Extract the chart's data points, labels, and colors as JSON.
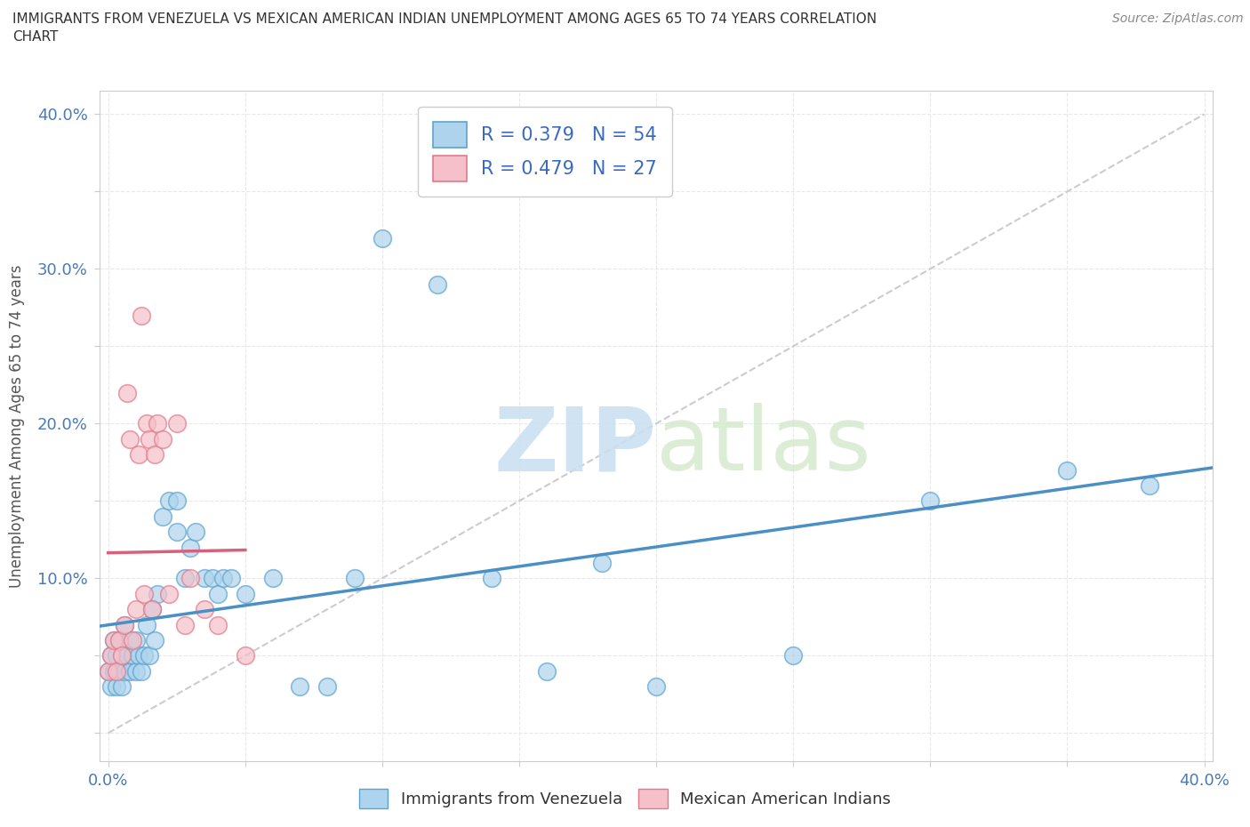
{
  "title_line1": "IMMIGRANTS FROM VENEZUELA VS MEXICAN AMERICAN INDIAN UNEMPLOYMENT AMONG AGES 65 TO 74 YEARS CORRELATION",
  "title_line2": "CHART",
  "source": "Source: ZipAtlas.com",
  "ylabel": "Unemployment Among Ages 65 to 74 years",
  "xlim": [
    -0.003,
    0.403
  ],
  "ylim": [
    -0.018,
    0.415
  ],
  "xticks": [
    0.0,
    0.05,
    0.1,
    0.15,
    0.2,
    0.25,
    0.3,
    0.35,
    0.4
  ],
  "yticks": [
    0.0,
    0.05,
    0.1,
    0.15,
    0.2,
    0.25,
    0.3,
    0.35,
    0.4
  ],
  "venezuela_color": "#aed4ed",
  "venezuela_edge": "#5ba3d0",
  "mexico_color": "#f5c0ca",
  "mexico_edge": "#e07a8a",
  "trend_venezuela_color": "#4a90c4",
  "trend_mexico_color": "#d9607a",
  "diagonal_color": "#cccccc",
  "R_venezuela": 0.379,
  "N_venezuela": 54,
  "R_mexico": 0.479,
  "N_mexico": 27,
  "legend_label_venezuela": "Immigrants from Venezuela",
  "legend_label_mexico": "Mexican American Indians",
  "venezuela_x": [
    0.0,
    0.001,
    0.001,
    0.002,
    0.002,
    0.003,
    0.003,
    0.004,
    0.004,
    0.005,
    0.005,
    0.006,
    0.006,
    0.007,
    0.008,
    0.008,
    0.009,
    0.01,
    0.01,
    0.011,
    0.012,
    0.013,
    0.014,
    0.015,
    0.016,
    0.017,
    0.018,
    0.02,
    0.022,
    0.025,
    0.025,
    0.028,
    0.03,
    0.032,
    0.035,
    0.038,
    0.04,
    0.042,
    0.045,
    0.05,
    0.06,
    0.07,
    0.08,
    0.09,
    0.1,
    0.12,
    0.14,
    0.16,
    0.18,
    0.2,
    0.25,
    0.3,
    0.35,
    0.38
  ],
  "venezuela_y": [
    0.04,
    0.03,
    0.05,
    0.04,
    0.06,
    0.03,
    0.05,
    0.04,
    0.06,
    0.03,
    0.05,
    0.04,
    0.07,
    0.05,
    0.04,
    0.06,
    0.05,
    0.04,
    0.06,
    0.05,
    0.04,
    0.05,
    0.07,
    0.05,
    0.08,
    0.06,
    0.09,
    0.14,
    0.15,
    0.13,
    0.15,
    0.1,
    0.12,
    0.13,
    0.1,
    0.1,
    0.09,
    0.1,
    0.1,
    0.09,
    0.1,
    0.03,
    0.03,
    0.1,
    0.32,
    0.29,
    0.1,
    0.04,
    0.11,
    0.03,
    0.05,
    0.15,
    0.17,
    0.16
  ],
  "mexico_x": [
    0.0,
    0.001,
    0.002,
    0.003,
    0.004,
    0.005,
    0.006,
    0.007,
    0.008,
    0.009,
    0.01,
    0.011,
    0.012,
    0.013,
    0.014,
    0.015,
    0.016,
    0.017,
    0.018,
    0.02,
    0.022,
    0.025,
    0.028,
    0.03,
    0.035,
    0.04,
    0.05
  ],
  "mexico_y": [
    0.04,
    0.05,
    0.06,
    0.04,
    0.06,
    0.05,
    0.07,
    0.22,
    0.19,
    0.06,
    0.08,
    0.18,
    0.27,
    0.09,
    0.2,
    0.19,
    0.08,
    0.18,
    0.2,
    0.19,
    0.09,
    0.2,
    0.07,
    0.1,
    0.08,
    0.07,
    0.05
  ],
  "bg_color": "#ffffff",
  "grid_color": "#e8e8e8"
}
